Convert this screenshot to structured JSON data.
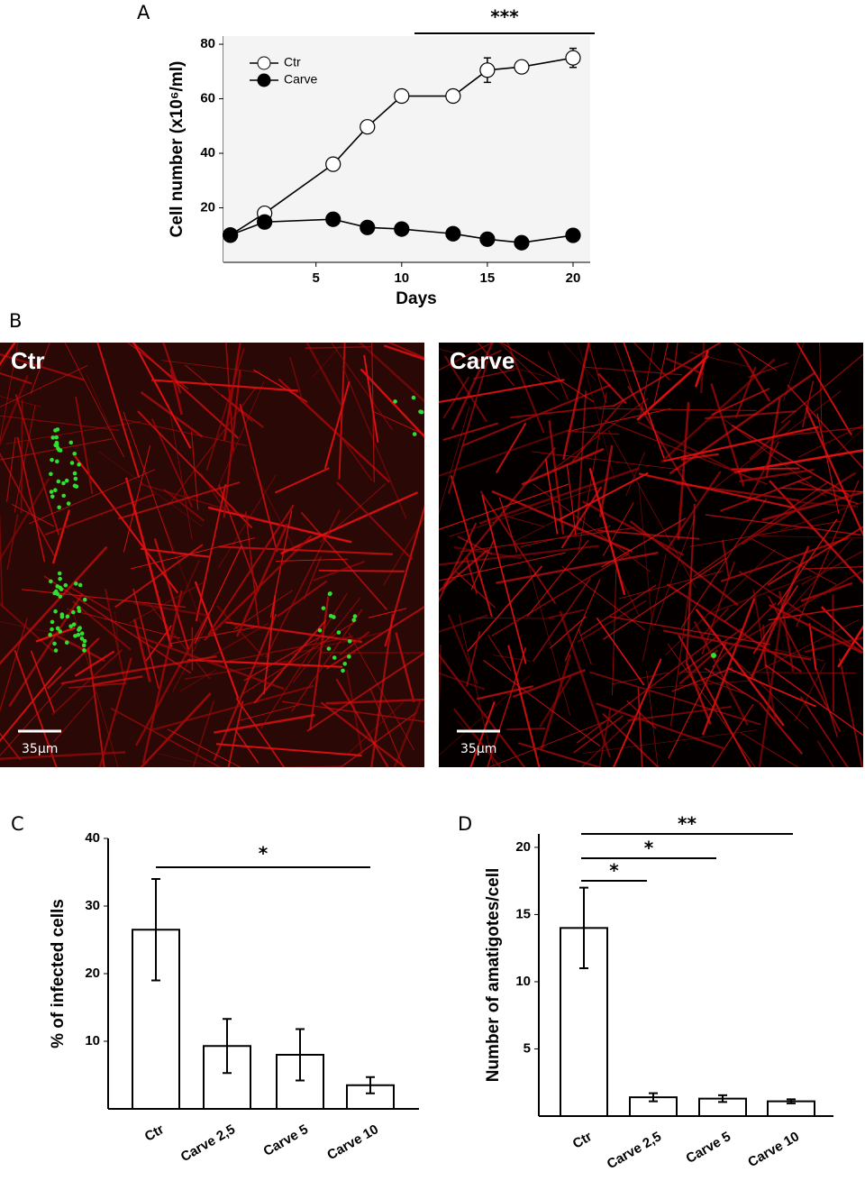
{
  "chart_data": [
    {
      "type": "line",
      "panel_label": "A",
      "x": [
        0,
        2,
        6,
        8,
        10,
        13,
        15,
        17,
        20
      ],
      "xlabel": "Days",
      "ylabel": "Cell number (x10⁶/ml)",
      "xlim": [
        -0.4,
        21
      ],
      "ylim": [
        0,
        83
      ],
      "xticks": [
        5,
        10,
        15,
        20
      ],
      "yticks": [
        20,
        40,
        60,
        80
      ],
      "legend": "upper left",
      "series": [
        {
          "name": "Ctr",
          "color": "#000000",
          "marker_fill": "#ffffff",
          "values": [
            10,
            18,
            36,
            49.7,
            61,
            61,
            70.5,
            71.7,
            75
          ],
          "errors": [
            null,
            null,
            null,
            null,
            null,
            1.5,
            4.5,
            null,
            3.5
          ]
        },
        {
          "name": "Carve",
          "color": "#000000",
          "marker_fill": "#000000",
          "values": [
            10,
            14.8,
            15.8,
            12.8,
            12.2,
            10.5,
            8.5,
            7.2,
            9.9
          ]
        }
      ],
      "annotations": [
        "***"
      ]
    },
    {
      "type": "bar",
      "panel_label": "C",
      "categories": [
        "Ctr",
        "Carve 2,5",
        "Carve 5",
        "Carve 10"
      ],
      "values": [
        26.5,
        9.3,
        8,
        3.5
      ],
      "errors": [
        7.5,
        4,
        3.8,
        1.2
      ],
      "ylabel": "% of infected cells",
      "ylim": [
        0,
        40
      ],
      "yticks": [
        10,
        20,
        30,
        40
      ],
      "color": "#ffffff",
      "annotations": [
        "*"
      ]
    },
    {
      "type": "bar",
      "panel_label": "D",
      "categories": [
        "Ctr",
        "Carve 2,5",
        "Carve 5",
        "Carve 10"
      ],
      "values": [
        14,
        1.4,
        1.3,
        1.1
      ],
      "errors": [
        3,
        0.3,
        0.25,
        0.15
      ],
      "ylabel": "Number of amatigotes/cell",
      "ylim": [
        0,
        21
      ],
      "yticks": [
        5,
        10,
        15,
        20
      ],
      "color": "#ffffff",
      "annotations": [
        "*",
        "*",
        "**"
      ]
    }
  ],
  "images": {
    "panel_label": "B",
    "panels": [
      {
        "label": "Ctr",
        "scale_bar": "35μm"
      },
      {
        "label": "Carve",
        "scale_bar": "35μm"
      }
    ]
  }
}
